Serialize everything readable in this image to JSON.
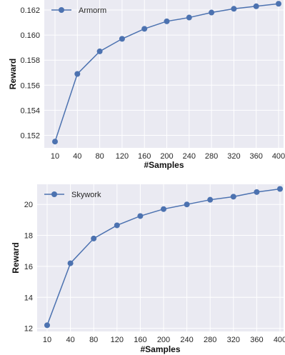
{
  "chart_data": [
    {
      "type": "line",
      "title": "",
      "xlabel": "#Samples",
      "ylabel": "Reward",
      "categories": [
        "10",
        "40",
        "80",
        "120",
        "160",
        "200",
        "240",
        "280",
        "320",
        "360",
        "400"
      ],
      "yticks": [
        "0.152",
        "0.154",
        "0.156",
        "0.158",
        "0.160",
        "0.162"
      ],
      "ylim": [
        0.151,
        0.1628
      ],
      "series": [
        {
          "name": "Armorm",
          "values": [
            0.1515,
            0.1569,
            0.1587,
            0.1597,
            0.1605,
            0.1611,
            0.1614,
            0.1618,
            0.1621,
            0.1623,
            0.1625
          ]
        }
      ],
      "grid": true,
      "legend": "top-left",
      "color": "#4c72b0",
      "background": "#eaeaf2"
    },
    {
      "type": "line",
      "title": "",
      "xlabel": "#Samples",
      "ylabel": "Reward",
      "categories": [
        "10",
        "40",
        "80",
        "120",
        "160",
        "200",
        "240",
        "280",
        "320",
        "360",
        "400"
      ],
      "yticks": [
        "12",
        "14",
        "16",
        "18",
        "20"
      ],
      "ylim": [
        11.8,
        21.3
      ],
      "series": [
        {
          "name": "Skywork",
          "values": [
            12.2,
            16.2,
            17.8,
            18.65,
            19.25,
            19.7,
            20.0,
            20.3,
            20.5,
            20.8,
            21.0
          ]
        }
      ],
      "grid": true,
      "legend": "top-left",
      "color": "#4c72b0",
      "background": "#eaeaf2"
    }
  ]
}
